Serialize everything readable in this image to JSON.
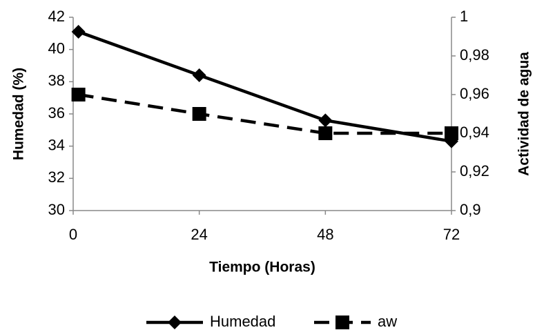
{
  "chart_data": {
    "type": "line",
    "x_label": "Tiempo (Horas)",
    "y_label": "Humedad (%)",
    "y2_label": "Actividad de agua",
    "x": [
      1,
      24,
      48,
      72
    ],
    "xlim": [
      0,
      72
    ],
    "xticks": [
      0,
      24,
      48,
      72
    ],
    "ylim": [
      30,
      42
    ],
    "yticks": [
      30,
      32,
      34,
      36,
      38,
      40,
      42
    ],
    "y2lim": [
      0.9,
      1
    ],
    "y2ticks": [
      {
        "value": 0.9,
        "label": "0,9"
      },
      {
        "value": 0.92,
        "label": "0,92"
      },
      {
        "value": 0.94,
        "label": "0,94"
      },
      {
        "value": 0.96,
        "label": "0,96"
      },
      {
        "value": 0.98,
        "label": "0,98"
      },
      1
    ],
    "series": [
      {
        "name": "Humedad",
        "color": "#000000",
        "marker": "diamond",
        "dash": "solid",
        "values": [
          41.1,
          38.4,
          35.6,
          34.3
        ]
      },
      {
        "name": "aw",
        "color": "#000000",
        "marker": "square",
        "dash": "dashed",
        "axis": "y2",
        "values": [
          0.96,
          0.95,
          0.94,
          0.94
        ]
      }
    ],
    "legend": "bottom"
  }
}
